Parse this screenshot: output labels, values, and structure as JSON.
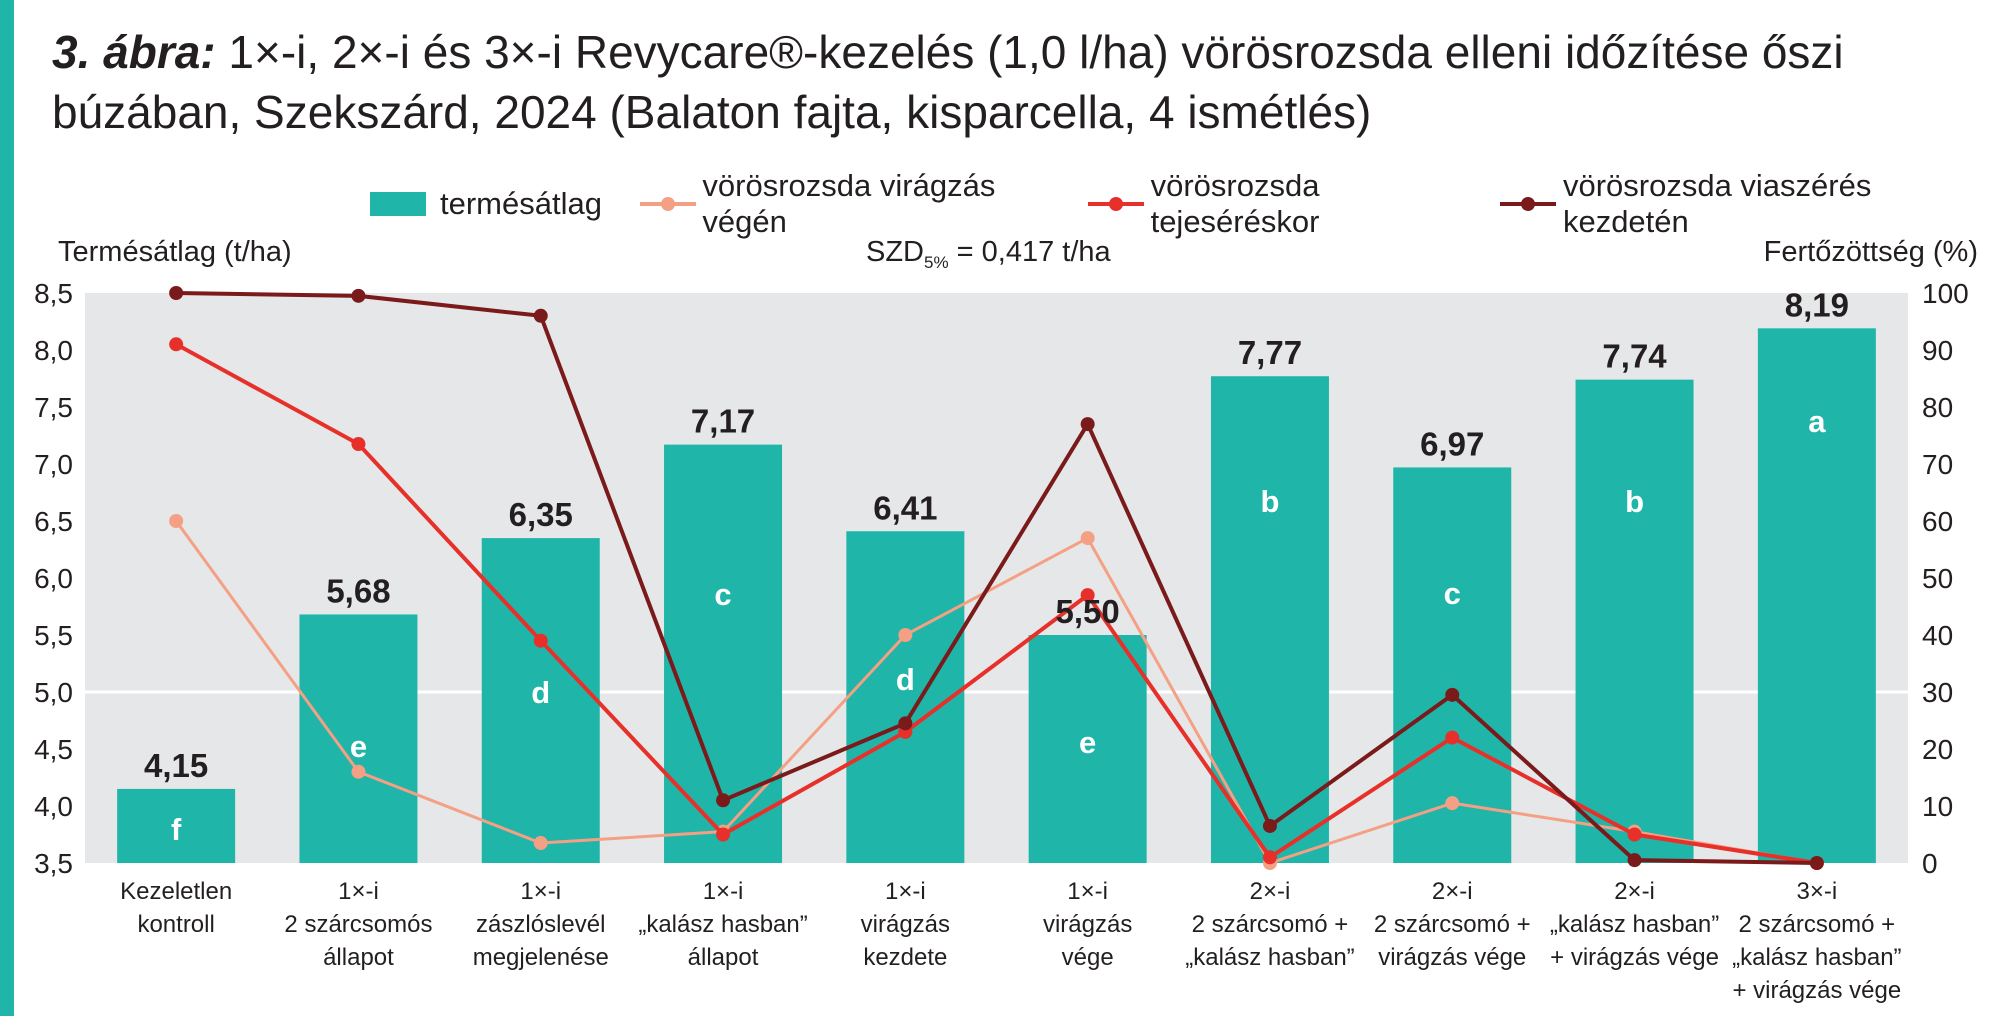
{
  "title": {
    "label": "3. ábra:",
    "text": "1×-i, 2×-i és 3×-i Revycare®-kezelés (1,0 l/ha) vörösrozsda elleni időzítése őszi búzában, Szekszárd, 2024 (Balaton fajta, kisparcella, 4 ismétlés)"
  },
  "szd": {
    "prefix": "SZD",
    "sub": "5%",
    "suffix": "= 0,417 t/ha"
  },
  "colors": {
    "bar": "#1fb5a8",
    "plot_bg": "#e6e7e8",
    "s1": "#f4a084",
    "s2": "#e8302a",
    "s3": "#7a1a1a"
  },
  "legend": [
    {
      "label": "termésátlag",
      "kind": "bar",
      "color": "#1fb5a8"
    },
    {
      "label": "vörösrozsda virágzás végén",
      "kind": "line",
      "color": "#f4a084"
    },
    {
      "label": "vörösrozsda tejeséréskor",
      "kind": "line",
      "color": "#e8302a"
    },
    {
      "label": "vörösrozsda viaszérés kezdetén",
      "kind": "line",
      "color": "#7a1a1a"
    }
  ],
  "chart_data": {
    "type": "bar",
    "ylabel": "Termésátlag (t/ha)",
    "y2label": "Fertőzöttség (%)",
    "ylim": [
      3.5,
      8.5
    ],
    "y2lim": [
      0,
      100
    ],
    "yticks": [
      "3,5",
      "4,0",
      "4,5",
      "5,0",
      "5,5",
      "6,0",
      "6,5",
      "7,0",
      "7,5",
      "8,0",
      "8,5"
    ],
    "y2ticks": [
      "0",
      "10",
      "20",
      "30",
      "40",
      "50",
      "60",
      "70",
      "80",
      "90",
      "100"
    ],
    "categories": [
      [
        "Kezeletlen",
        "kontroll"
      ],
      [
        "1×-i",
        "2 szárcsomós",
        "állapot"
      ],
      [
        "1×-i",
        "zászlóslevél",
        "megjelenése"
      ],
      [
        "1×-i",
        "„kalász hasban”",
        "állapot"
      ],
      [
        "1×-i",
        "virágzás",
        "kezdete"
      ],
      [
        "1×-i",
        "virágzás",
        "vége"
      ],
      [
        "2×-i",
        "2 szárcsomó +",
        "„kalász hasban”"
      ],
      [
        "2×-i",
        "2 szárcsomó +",
        "virágzás vége"
      ],
      [
        "2×-i",
        "„kalász hasban”",
        "+ virágzás vége"
      ],
      [
        "3×-i",
        "2 szárcsomó +",
        "„kalász hasban”",
        "+ virágzás vége"
      ]
    ],
    "bars": {
      "name": "termésátlag",
      "values": [
        4.15,
        5.68,
        6.35,
        7.17,
        6.41,
        5.5,
        7.77,
        6.97,
        7.74,
        8.19
      ],
      "value_labels": [
        "4,15",
        "5,68",
        "6,35",
        "7,17",
        "6,41",
        "5,50",
        "7,77",
        "6,97",
        "7,74",
        "8,19"
      ],
      "letters": [
        "f",
        "e",
        "d",
        "c",
        "d",
        "e",
        "b",
        "c",
        "b",
        "a"
      ]
    },
    "lines": [
      {
        "name": "vörösrozsda virágzás végén",
        "values": [
          60,
          16,
          3.5,
          5.5,
          40,
          57,
          0,
          10.5,
          5.5,
          0
        ]
      },
      {
        "name": "vörösrozsda tejeséréskor",
        "values": [
          91,
          73.5,
          39,
          5,
          23,
          47,
          1,
          22,
          5,
          0
        ]
      },
      {
        "name": "vörösrozsda viaszérés kezdetén",
        "values": [
          100,
          99.5,
          96,
          11,
          24.5,
          77,
          6.5,
          29.5,
          0.5,
          0
        ]
      }
    ],
    "grid": "horizontal at 5,0 only",
    "legend_position": "top"
  }
}
